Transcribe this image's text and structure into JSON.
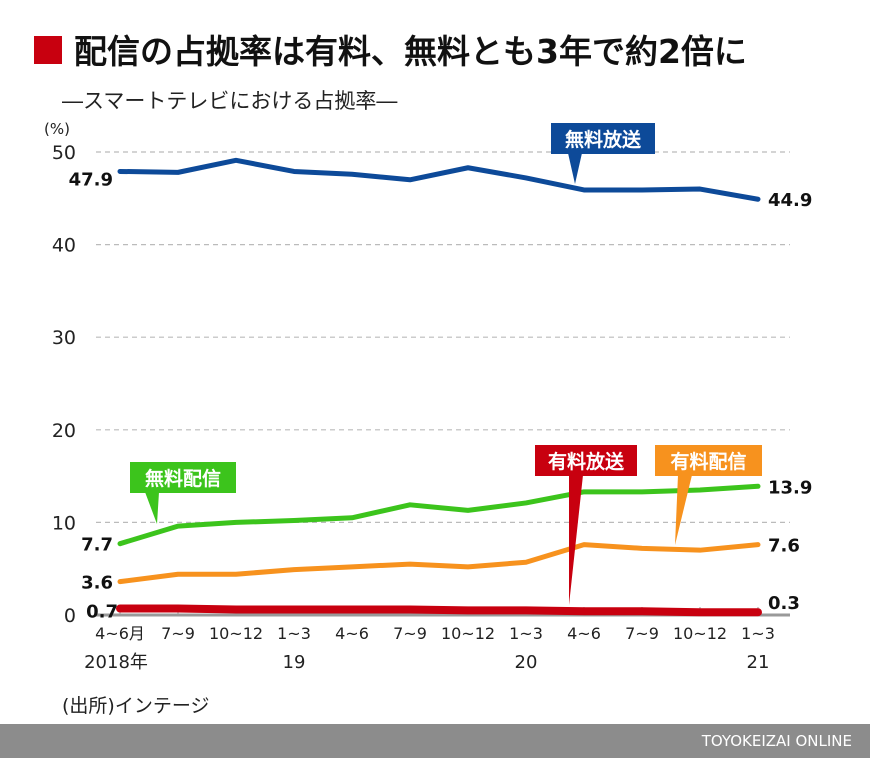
{
  "chart_data": {
    "type": "line",
    "title": "配信の占拠率は有料、無料とも3年で約2倍に",
    "subtitle": "―スマートテレビにおける占拠率―",
    "ylabel": "(%)",
    "ylim": [
      0,
      50
    ],
    "yticks": [
      "0",
      "10",
      "20",
      "30",
      "40",
      "50"
    ],
    "grid": true,
    "categories": [
      "4~6月",
      "7~9",
      "10~12",
      "1~3",
      "4~6",
      "7~9",
      "10~12",
      "1~3",
      "4~6",
      "7~9",
      "10~12",
      "1~3"
    ],
    "year_labels": [
      {
        "index": 0,
        "label": "2018年"
      },
      {
        "index": 3,
        "label": "19"
      },
      {
        "index": 7,
        "label": "20"
      },
      {
        "index": 11,
        "label": "21"
      }
    ],
    "series": [
      {
        "name": "無料放送",
        "color": "#0d4a99",
        "values": [
          47.9,
          47.8,
          49.1,
          47.9,
          47.6,
          47.0,
          48.3,
          47.2,
          45.9,
          45.9,
          46.0,
          44.9
        ],
        "start_label": "47.9",
        "end_label": "44.9"
      },
      {
        "name": "無料配信",
        "color": "#3cc41c",
        "values": [
          7.7,
          9.6,
          10.0,
          10.2,
          10.5,
          11.9,
          11.3,
          12.1,
          13.3,
          13.3,
          13.5,
          13.9
        ],
        "start_label": "7.7",
        "end_label": "13.9"
      },
      {
        "name": "有料配信",
        "color": "#f7921e",
        "values": [
          3.6,
          4.4,
          4.4,
          4.9,
          5.2,
          5.5,
          5.2,
          5.7,
          7.6,
          7.2,
          7.0,
          7.6
        ],
        "start_label": "3.6",
        "end_label": "7.6"
      },
      {
        "name": "有料放送",
        "color": "#c8000f",
        "values": [
          0.7,
          0.7,
          0.6,
          0.6,
          0.6,
          0.6,
          0.5,
          0.5,
          0.4,
          0.4,
          0.3,
          0.3
        ],
        "start_label": "0.7",
        "end_label": "0.3"
      }
    ],
    "source": "(出所)インテージ",
    "credit": "TOYOKEIZAI ONLINE"
  }
}
